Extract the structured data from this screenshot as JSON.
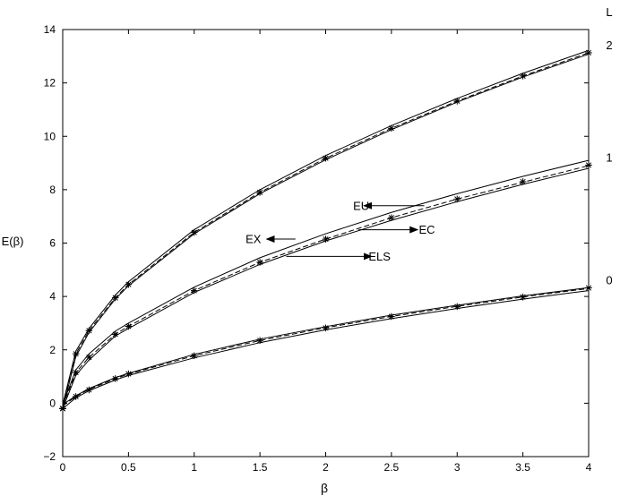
{
  "chart_data": {
    "type": "line",
    "title": "",
    "xlabel": "β",
    "ylabel": "E(β)",
    "xlim": [
      0,
      4
    ],
    "ylim": [
      -2,
      14
    ],
    "xticks": [
      0,
      0.5,
      1,
      1.5,
      2,
      2.5,
      3,
      3.5,
      4
    ],
    "xtick_labels": [
      "0",
      "0.5",
      "1",
      "1.5",
      "2",
      "2.5",
      "3",
      "3.5",
      "4"
    ],
    "yticks": [
      -2,
      0,
      2,
      4,
      6,
      8,
      10,
      12,
      14
    ],
    "ytick_labels": [
      "−2",
      "0",
      "2",
      "4",
      "6",
      "8",
      "10",
      "12",
      "14"
    ],
    "grid": false,
    "right_header": "L",
    "x": [
      0,
      0.1,
      0.2,
      0.4,
      0.5,
      1,
      1.5,
      2,
      2.5,
      3,
      3.5,
      4
    ],
    "series": [
      {
        "name": "0",
        "curves": [
          {
            "style": "solid",
            "values": [
              -0.2,
              0.2,
              0.47,
              0.87,
              1.04,
              1.7,
              2.27,
              2.75,
              3.17,
              3.55,
              3.9,
              4.22
            ]
          },
          {
            "style": "solid",
            "values": [
              -0.05,
              0.28,
              0.55,
              0.96,
              1.12,
              1.83,
              2.4,
              2.87,
              3.3,
              3.67,
              4.02,
              4.33
            ]
          },
          {
            "style": "dashed",
            "values": [
              -0.1,
              0.25,
              0.52,
              0.92,
              1.09,
              1.78,
              2.35,
              2.83,
              3.25,
              3.63,
              3.98,
              4.3
            ]
          }
        ],
        "stars": [
          -0.2,
          0.25,
          0.5,
          0.92,
          1.1,
          1.78,
          2.35,
          2.82,
          3.25,
          3.62,
          3.98,
          4.32
        ]
      },
      {
        "name": "1",
        "curves": [
          {
            "style": "solid",
            "values": [
              -0.2,
              1.05,
              1.62,
              2.52,
              2.8,
              4.15,
              5.2,
              6.08,
              6.85,
              7.55,
              8.2,
              8.8
            ]
          },
          {
            "style": "solid",
            "values": [
              -0.05,
              1.25,
              1.85,
              2.7,
              3.0,
              4.35,
              5.45,
              6.35,
              7.15,
              7.85,
              8.5,
              9.1
            ]
          },
          {
            "style": "dashed",
            "values": [
              -0.1,
              1.15,
              1.72,
              2.58,
              2.88,
              4.22,
              5.28,
              6.15,
              6.95,
              7.65,
              8.28,
              8.9
            ]
          }
        ],
        "stars": [
          -0.2,
          1.15,
          1.72,
          2.58,
          2.88,
          4.22,
          5.28,
          6.15,
          6.95,
          7.65,
          8.3,
          8.92
        ]
      },
      {
        "name": "2",
        "curves": [
          {
            "style": "solid",
            "values": [
              -0.2,
              1.75,
              2.65,
              3.9,
              4.4,
              6.35,
              7.85,
              9.12,
              10.25,
              11.28,
              12.22,
              13.08
            ]
          },
          {
            "style": "solid",
            "values": [
              -0.05,
              1.95,
              2.8,
              4.05,
              4.55,
              6.5,
              8.0,
              9.28,
              10.4,
              11.42,
              12.36,
              13.22
            ]
          },
          {
            "style": "dashed",
            "values": [
              -0.1,
              1.85,
              2.72,
              3.95,
              4.45,
              6.4,
              7.9,
              9.18,
              10.3,
              11.32,
              12.26,
              13.13
            ]
          }
        ],
        "stars": [
          -0.2,
          1.85,
          2.72,
          3.95,
          4.45,
          6.4,
          7.9,
          9.18,
          10.3,
          11.32,
          12.26,
          13.13
        ]
      }
    ],
    "annotations": [
      {
        "text": "EU",
        "text_x": 2.27,
        "text_y": 7.4,
        "arrow_from": [
          2.75,
          7.4
        ],
        "arrow_to": [
          2.29,
          7.4
        ]
      },
      {
        "text": "EX",
        "text_x": 1.45,
        "text_y": 6.15,
        "arrow_from": [
          1.77,
          6.15
        ],
        "arrow_to": [
          1.55,
          6.15
        ]
      },
      {
        "text": "EC",
        "text_x": 2.77,
        "text_y": 6.5,
        "arrow_from": [
          2.25,
          6.5
        ],
        "arrow_to": [
          2.7,
          6.5
        ]
      },
      {
        "text": "ELS",
        "text_x": 2.41,
        "text_y": 5.5,
        "arrow_from": [
          1.7,
          5.5
        ],
        "arrow_to": [
          2.35,
          5.5
        ]
      }
    ]
  }
}
